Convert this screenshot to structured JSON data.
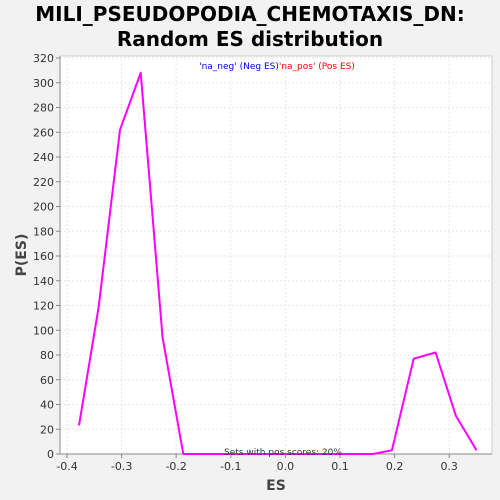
{
  "chart_data": {
    "type": "line",
    "title_line1": "MILI_PSEUDOPODIA_CHEMOTAXIS_DN:",
    "title_line2": "Random ES distribution",
    "xlabel": "ES",
    "ylabel": "P(ES)",
    "xlim": [
      -0.4,
      0.4
    ],
    "ylim": [
      0,
      320
    ],
    "xticks": [
      -0.4,
      -0.3,
      -0.2,
      -0.1,
      0.0,
      0.1,
      0.2,
      0.3
    ],
    "xtick_labels": [
      "-0.4",
      "-0.3",
      "-0.2",
      "-0.1",
      "0.0",
      "0.1",
      "0.2",
      "0.3"
    ],
    "yticks": [
      0,
      20,
      40,
      60,
      80,
      100,
      120,
      140,
      160,
      180,
      200,
      220,
      240,
      260,
      280,
      300,
      320
    ],
    "grid": true,
    "legend": {
      "placement": "top-center",
      "neg_label": "'na_neg' (Neg ES)",
      "pos_label": "'na_pos' (Pos ES)",
      "neg_color": "#0000ff",
      "pos_color": "#ff0000"
    },
    "annotation": "Sets with pos scores: 20%",
    "series": [
      {
        "color": "#ff00ff",
        "x": [
          -0.378,
          -0.342,
          -0.303,
          -0.265,
          -0.225,
          -0.187,
          -0.15,
          -0.11,
          -0.07,
          -0.03,
          0.0,
          0.04,
          0.08,
          0.12,
          0.16,
          0.195,
          0.235,
          0.275,
          0.312,
          0.35
        ],
        "y": [
          23,
          119,
          262,
          308,
          94,
          0,
          0,
          0,
          0,
          0,
          0,
          0,
          0,
          0,
          0,
          3,
          77,
          82,
          31,
          3
        ]
      }
    ]
  }
}
